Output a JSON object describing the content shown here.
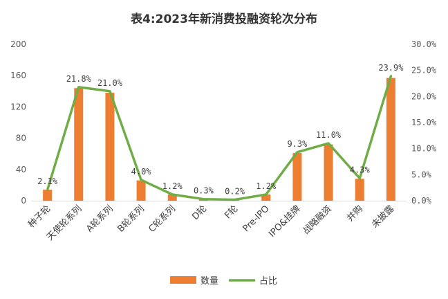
{
  "chart_data": {
    "type": "bar+line",
    "title": "表4:2023年新消费投融资轮次分布",
    "categories": [
      "种子轮",
      "天使轮系列",
      "A轮系列",
      "B轮系列",
      "C轮系列",
      "D轮",
      "F轮",
      "Pre-IPO",
      "IPO&挂牌",
      "战略融资",
      "并购",
      "未披露"
    ],
    "series": [
      {
        "name": "数量",
        "type": "bar",
        "axis": "left",
        "color": "#ED7D31",
        "values": [
          14,
          144,
          138,
          26,
          8,
          2,
          1,
          8,
          61,
          72,
          28,
          157
        ]
      },
      {
        "name": "占比",
        "type": "line",
        "axis": "right",
        "color": "#70AD47",
        "values": [
          2.1,
          21.8,
          21.0,
          4.0,
          1.2,
          0.3,
          0.2,
          1.2,
          9.3,
          11.0,
          4.3,
          23.9
        ],
        "data_labels": [
          "2.1%",
          "21.8%",
          "21.0%",
          "4.0%",
          "1.2%",
          "0.3%",
          "0.2%",
          "1.2%",
          "9.3%",
          "11.0%",
          "4.3%",
          "23.9%"
        ]
      }
    ],
    "left_axis": {
      "ylim": [
        0,
        200
      ],
      "ticks": [
        "0",
        "40",
        "80",
        "120",
        "160",
        "200"
      ]
    },
    "right_axis": {
      "ylim": [
        0,
        30
      ],
      "ticks": [
        "0.0%",
        "5.0%",
        "10.0%",
        "15.0%",
        "20.0%",
        "25.0%",
        "30.0%"
      ]
    },
    "grid": false,
    "legend_position": "bottom"
  }
}
